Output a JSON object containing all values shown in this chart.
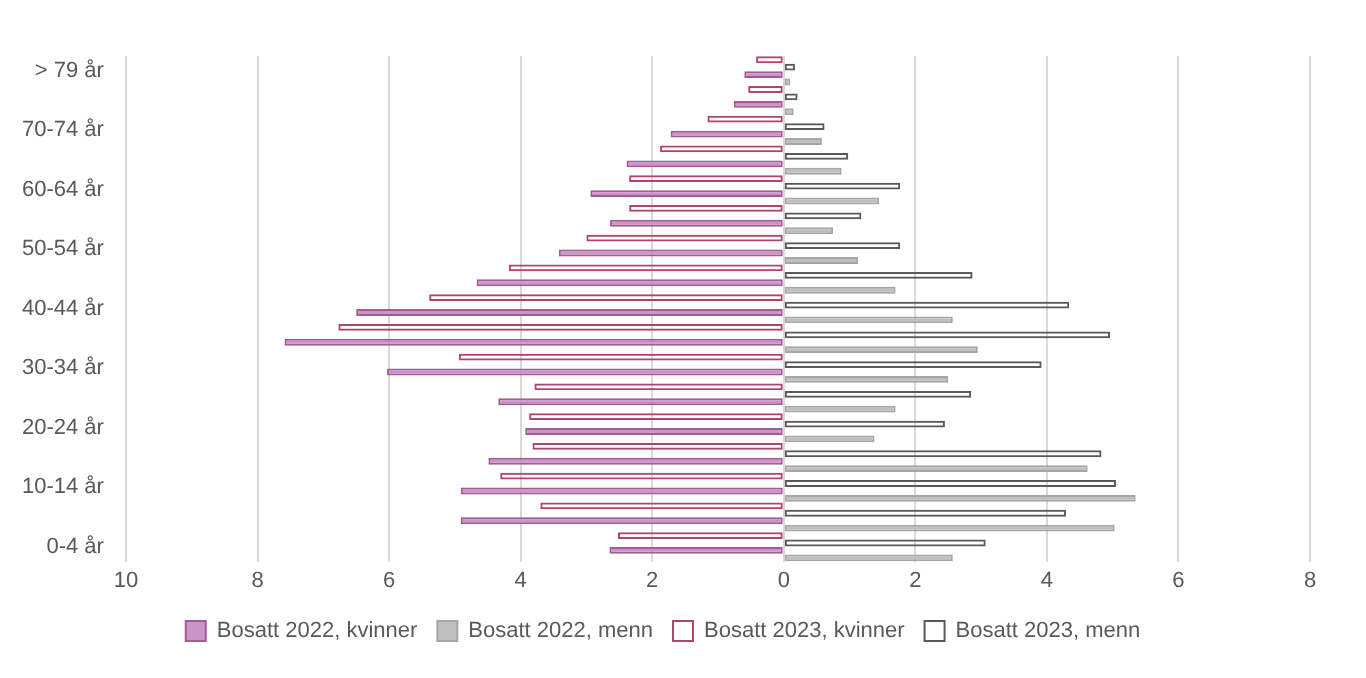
{
  "chart_data": {
    "type": "bar",
    "orientation": "horizontal",
    "categories": [
      "> 79 år",
      null,
      "70-74 år",
      null,
      "60-64 år",
      null,
      "50-54 år",
      null,
      "40-44 år",
      null,
      "30-34 år",
      null,
      "20-24 år",
      null,
      "10-14 år",
      null,
      "0-4 år"
    ],
    "series": [
      {
        "name": "Bosatt 2022, kvinner",
        "color": "#c994c7",
        "values": [
          -0.6,
          -0.76,
          -1.72,
          -2.39,
          -2.94,
          -2.64,
          -3.42,
          -4.67,
          -6.5,
          -7.59,
          -6.03,
          -4.34,
          -3.93,
          -4.49,
          -4.91,
          -4.91,
          -2.65
        ]
      },
      {
        "name": "Bosatt 2022, menn",
        "color": "#bfbfbf",
        "values": [
          0.1,
          0.15,
          0.58,
          0.88,
          1.45,
          0.75,
          1.13,
          1.7,
          2.57,
          2.95,
          2.5,
          1.7,
          1.38,
          4.62,
          5.35,
          5.03,
          2.57
        ]
      },
      {
        "name": "Bosatt 2023, kvinner",
        "color": "#b0446e",
        "values": [
          -0.42,
          -0.54,
          -1.16,
          -1.88,
          -2.35,
          -2.35,
          -3.0,
          -4.18,
          -5.39,
          -6.77,
          -4.94,
          -3.79,
          -3.87,
          -3.82,
          -4.31,
          -3.7,
          -2.52
        ]
      },
      {
        "name": "Bosatt 2023, menn",
        "color": "#595959",
        "values": [
          0.17,
          0.21,
          0.62,
          0.98,
          1.77,
          1.18,
          1.77,
          2.87,
          4.34,
          4.96,
          3.92,
          2.85,
          2.45,
          4.83,
          5.05,
          4.29,
          3.07
        ]
      }
    ],
    "xlim": [
      -10,
      8
    ],
    "xticks": [
      {
        "value": -10,
        "label": "10"
      },
      {
        "value": -8,
        "label": "8"
      },
      {
        "value": -6,
        "label": "6"
      },
      {
        "value": -4,
        "label": "4"
      },
      {
        "value": -2,
        "label": "2"
      },
      0,
      2,
      4,
      6,
      8
    ],
    "grid": "x",
    "legend": "bottom"
  }
}
